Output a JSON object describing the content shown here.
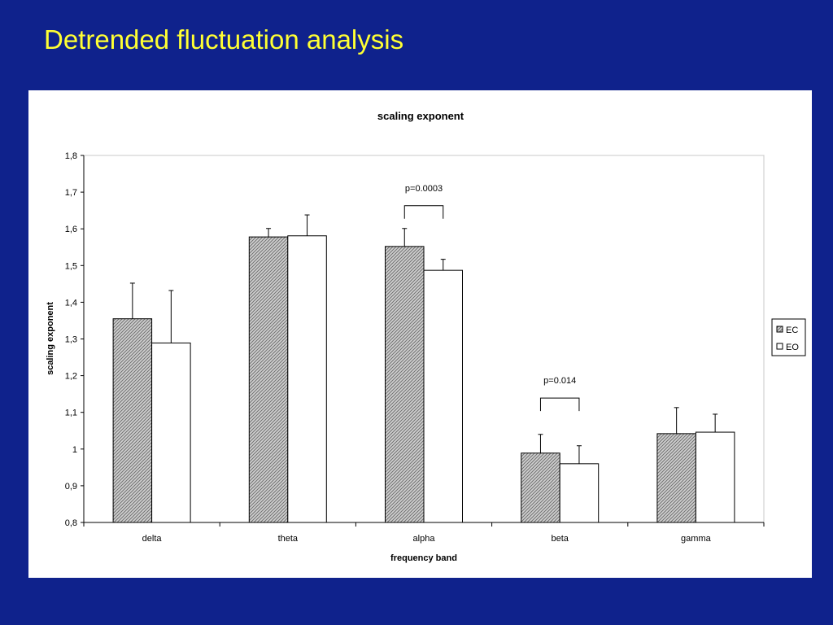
{
  "slide": {
    "title": "Detrended fluctuation analysis"
  },
  "colors": {
    "background": "#0f228c",
    "title": "#ffff33",
    "ec_fill_pattern": "gray-diagonal-hatch",
    "eo_fill": "#ffffff"
  },
  "chart_data": {
    "type": "bar",
    "title": "scaling exponent",
    "xlabel": "frequency band",
    "ylabel": "scaling exponent",
    "ylim": [
      0.8,
      1.8
    ],
    "yticks": [
      "0,8",
      "0,9",
      "1",
      "1,1",
      "1,2",
      "1,3",
      "1,4",
      "1,5",
      "1,6",
      "1,7",
      "1,8"
    ],
    "categories": [
      "delta",
      "theta",
      "alpha",
      "beta",
      "gamma"
    ],
    "series": [
      {
        "name": "EC",
        "values": [
          1.355,
          1.578,
          1.552,
          0.989,
          1.042
        ],
        "errors": [
          0.097,
          0.023,
          0.049,
          0.051,
          0.071
        ]
      },
      {
        "name": "EO",
        "values": [
          1.289,
          1.581,
          1.487,
          0.96,
          1.046
        ],
        "errors": [
          0.143,
          0.057,
          0.03,
          0.049,
          0.049
        ]
      }
    ],
    "annotations": [
      {
        "text": "p=0.0003",
        "category": "alpha",
        "y": 1.663
      },
      {
        "text": "p=0.014",
        "category": "beta",
        "y": 1.139
      }
    ],
    "legend": {
      "position": "right",
      "entries": [
        "EC",
        "EO"
      ]
    },
    "grid": false
  }
}
